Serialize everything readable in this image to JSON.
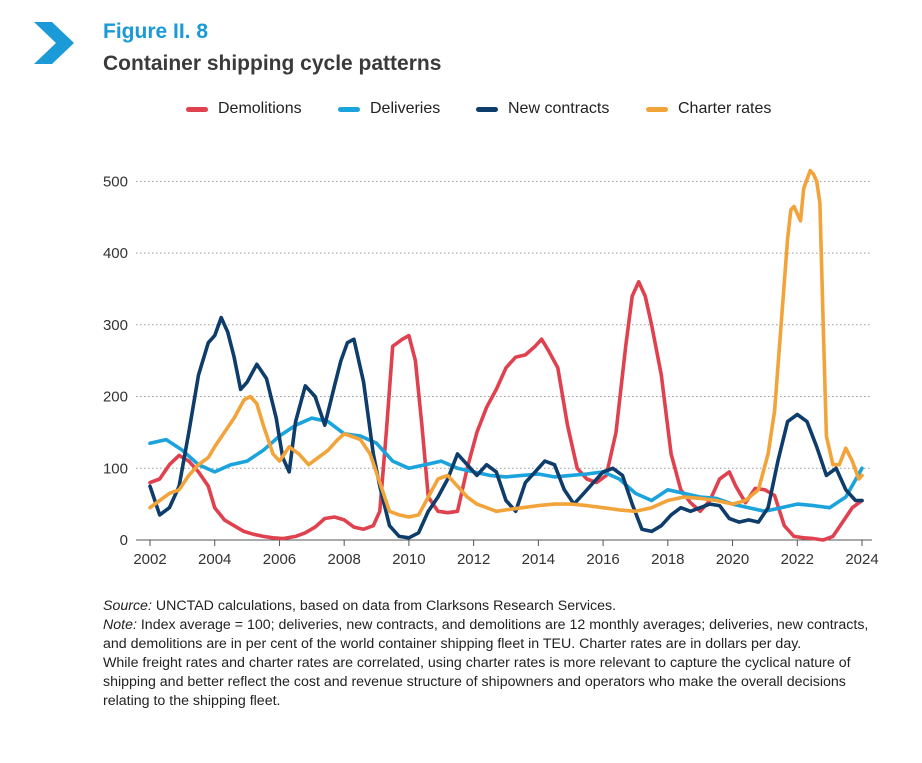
{
  "figure": {
    "label": "Figure II. 8",
    "title": "Container shipping cycle patterns",
    "icon": "chevron-right-icon",
    "accent_color": "#1a9ad6"
  },
  "chart_data": {
    "type": "line",
    "title": "",
    "xlabel": "",
    "ylabel": "",
    "xlim": [
      2002,
      2024.3
    ],
    "ylim": [
      0,
      520
    ],
    "x_ticks": [
      2002,
      2004,
      2006,
      2008,
      2010,
      2012,
      2014,
      2016,
      2018,
      2020,
      2022,
      2024
    ],
    "y_ticks": [
      0,
      100,
      200,
      300,
      400,
      500
    ],
    "grid": "horizontal dotted",
    "legend_position": "top",
    "series": [
      {
        "name": "Demolitions",
        "color": "#e0414f",
        "x": [
          2002,
          2002.3,
          2002.6,
          2002.9,
          2003.2,
          2003.5,
          2003.8,
          2004,
          2004.3,
          2004.6,
          2004.9,
          2005.2,
          2005.5,
          2005.8,
          2006.1,
          2006.5,
          2006.8,
          2007.1,
          2007.4,
          2007.7,
          2008,
          2008.3,
          2008.6,
          2008.9,
          2009.1,
          2009.3,
          2009.5,
          2009.8,
          2010,
          2010.2,
          2010.4,
          2010.6,
          2010.9,
          2011.2,
          2011.5,
          2011.8,
          2012.1,
          2012.4,
          2012.7,
          2013,
          2013.3,
          2013.6,
          2013.9,
          2014.1,
          2014.3,
          2014.6,
          2014.9,
          2015.2,
          2015.5,
          2015.8,
          2016.1,
          2016.4,
          2016.7,
          2016.9,
          2017.1,
          2017.3,
          2017.5,
          2017.8,
          2018.1,
          2018.4,
          2018.7,
          2019,
          2019.3,
          2019.6,
          2019.9,
          2020.1,
          2020.4,
          2020.7,
          2021,
          2021.3,
          2021.6,
          2021.9,
          2022.2,
          2022.5,
          2022.8,
          2023.1,
          2023.4,
          2023.7,
          2024
        ],
        "values": [
          80,
          85,
          105,
          118,
          110,
          95,
          75,
          45,
          28,
          20,
          12,
          8,
          5,
          3,
          2,
          5,
          10,
          18,
          30,
          32,
          28,
          18,
          15,
          20,
          40,
          150,
          270,
          280,
          285,
          250,
          160,
          60,
          40,
          38,
          40,
          100,
          150,
          185,
          210,
          240,
          255,
          258,
          270,
          280,
          265,
          240,
          160,
          100,
          85,
          80,
          90,
          150,
          270,
          340,
          360,
          340,
          300,
          230,
          120,
          70,
          52,
          40,
          55,
          85,
          95,
          75,
          52,
          72,
          70,
          62,
          20,
          5,
          3,
          2,
          0,
          5,
          25,
          45,
          55
        ]
      },
      {
        "name": "Deliveries",
        "color": "#1aa3dc",
        "x": [
          2002,
          2002.5,
          2003,
          2003.5,
          2004,
          2004.5,
          2005,
          2005.5,
          2006,
          2006.5,
          2007,
          2007.5,
          2008,
          2008.5,
          2009,
          2009.5,
          2010,
          2010.5,
          2011,
          2011.5,
          2012,
          2012.5,
          2013,
          2013.5,
          2014,
          2014.5,
          2015,
          2015.5,
          2016,
          2016.5,
          2017,
          2017.5,
          2018,
          2018.5,
          2019,
          2019.5,
          2020,
          2020.5,
          2021,
          2021.5,
          2022,
          2022.5,
          2023,
          2023.5,
          2024
        ],
        "values": [
          135,
          140,
          125,
          105,
          95,
          105,
          110,
          125,
          145,
          160,
          170,
          165,
          148,
          145,
          135,
          110,
          100,
          105,
          110,
          100,
          95,
          90,
          88,
          90,
          92,
          88,
          90,
          92,
          95,
          85,
          65,
          55,
          70,
          65,
          60,
          58,
          50,
          45,
          40,
          45,
          50,
          48,
          45,
          60,
          100
        ]
      },
      {
        "name": "New contracts",
        "color": "#0e3d6b",
        "x": [
          2002,
          2002.3,
          2002.6,
          2002.9,
          2003.2,
          2003.5,
          2003.8,
          2004,
          2004.2,
          2004.4,
          2004.6,
          2004.8,
          2005,
          2005.3,
          2005.6,
          2005.9,
          2006.1,
          2006.3,
          2006.5,
          2006.8,
          2007.1,
          2007.4,
          2007.7,
          2007.9,
          2008.1,
          2008.3,
          2008.6,
          2008.9,
          2009.1,
          2009.4,
          2009.7,
          2010,
          2010.3,
          2010.6,
          2010.9,
          2011.2,
          2011.5,
          2011.8,
          2012.1,
          2012.4,
          2012.7,
          2013,
          2013.3,
          2013.6,
          2013.9,
          2014.2,
          2014.5,
          2014.8,
          2015.1,
          2015.4,
          2015.7,
          2016,
          2016.3,
          2016.6,
          2016.9,
          2017.2,
          2017.5,
          2017.8,
          2018.1,
          2018.4,
          2018.7,
          2019,
          2019.3,
          2019.6,
          2019.9,
          2020.2,
          2020.5,
          2020.8,
          2021.1,
          2021.4,
          2021.7,
          2022,
          2022.3,
          2022.6,
          2022.9,
          2023.2,
          2023.5,
          2023.8,
          2024
        ],
        "values": [
          75,
          35,
          45,
          75,
          150,
          230,
          275,
          285,
          310,
          290,
          255,
          210,
          220,
          245,
          225,
          170,
          115,
          95,
          165,
          215,
          200,
          160,
          215,
          250,
          275,
          280,
          220,
          120,
          75,
          20,
          5,
          3,
          10,
          40,
          60,
          85,
          120,
          105,
          90,
          105,
          95,
          55,
          40,
          80,
          95,
          110,
          105,
          70,
          50,
          65,
          80,
          95,
          100,
          90,
          50,
          15,
          12,
          20,
          35,
          45,
          40,
          45,
          50,
          48,
          30,
          25,
          28,
          25,
          45,
          110,
          165,
          175,
          165,
          130,
          90,
          100,
          70,
          55,
          55
        ]
      },
      {
        "name": "Charter rates",
        "color": "#f2a33a",
        "x": [
          2002,
          2002.3,
          2002.6,
          2002.9,
          2003.2,
          2003.5,
          2003.8,
          2004,
          2004.3,
          2004.6,
          2004.9,
          2005.1,
          2005.3,
          2005.5,
          2005.8,
          2006,
          2006.3,
          2006.6,
          2006.9,
          2007.2,
          2007.5,
          2007.8,
          2008,
          2008.2,
          2008.5,
          2008.8,
          2009.1,
          2009.4,
          2009.7,
          2010,
          2010.3,
          2010.6,
          2010.9,
          2011.2,
          2011.5,
          2011.8,
          2012.1,
          2012.4,
          2012.7,
          2013,
          2013.5,
          2014,
          2014.5,
          2015,
          2015.5,
          2016,
          2016.5,
          2017,
          2017.5,
          2018,
          2018.5,
          2019,
          2019.5,
          2020,
          2020.4,
          2020.8,
          2021.1,
          2021.3,
          2021.5,
          2021.7,
          2021.8,
          2021.9,
          2022.1,
          2022.2,
          2022.4,
          2022.5,
          2022.6,
          2022.7,
          2022.8,
          2022.9,
          2023.1,
          2023.3,
          2023.5,
          2023.7,
          2023.9,
          2024
        ],
        "values": [
          45,
          55,
          65,
          70,
          90,
          105,
          115,
          130,
          150,
          170,
          195,
          200,
          190,
          160,
          120,
          110,
          130,
          120,
          105,
          115,
          125,
          140,
          148,
          145,
          140,
          120,
          80,
          40,
          35,
          32,
          35,
          60,
          85,
          90,
          75,
          60,
          50,
          45,
          40,
          42,
          45,
          48,
          50,
          50,
          48,
          45,
          42,
          40,
          45,
          55,
          60,
          58,
          55,
          50,
          55,
          70,
          120,
          180,
          300,
          420,
          460,
          465,
          445,
          490,
          515,
          510,
          500,
          470,
          300,
          145,
          105,
          105,
          128,
          110,
          85,
          90
        ]
      }
    ]
  },
  "footer": {
    "source_label": "Source:",
    "source_text": " UNCTAD calculations, based on data from Clarksons Research Services.",
    "note_label": "Note:",
    "note_text": " Index average = 100; deliveries, new contracts, and demolitions are 12 monthly averages; deliveries, new contracts, and demolitions are in per cent of the world container shipping fleet in TEU. Charter rates are in dollars per day.",
    "paragraph": "While freight rates and charter rates are correlated, using charter rates is more relevant to capture the cyclical nature of shipping and better reflect the cost and revenue structure of shipowners and operators who make the overall decisions relating to the shipping fleet."
  }
}
